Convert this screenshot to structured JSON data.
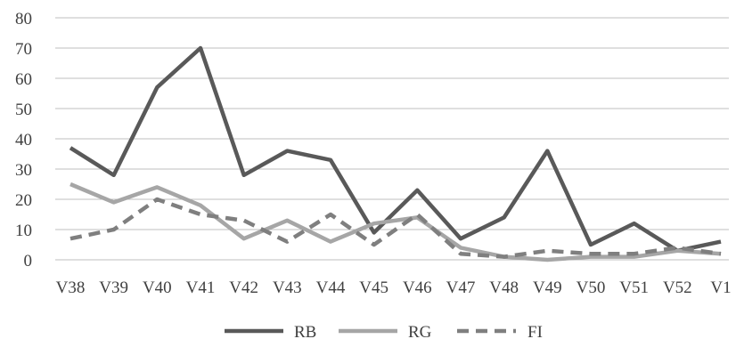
{
  "chart_data": {
    "type": "line",
    "title": "",
    "xlabel": "",
    "ylabel": "",
    "ylim": [
      0,
      80
    ],
    "yticks": [
      0,
      10,
      20,
      30,
      40,
      50,
      60,
      70,
      80
    ],
    "grid": true,
    "legend_position": "bottom",
    "categories": [
      "V38",
      "V39",
      "V40",
      "V41",
      "V42",
      "V43",
      "V44",
      "V45",
      "V46",
      "V47",
      "V48",
      "V49",
      "V50",
      "V51",
      "V52",
      "V1"
    ],
    "series": [
      {
        "name": "RB",
        "color": "#595959",
        "dash": "solid",
        "values": [
          37,
          28,
          57,
          70,
          28,
          36,
          33,
          9,
          23,
          7,
          14,
          36,
          5,
          12,
          3,
          6
        ]
      },
      {
        "name": "RG",
        "color": "#a6a6a6",
        "dash": "solid",
        "values": [
          25,
          19,
          24,
          18,
          7,
          13,
          6,
          12,
          14,
          4,
          1,
          0,
          1,
          1,
          3,
          2
        ]
      },
      {
        "name": "FI",
        "color": "#7f7f7f",
        "dash": "dashed",
        "values": [
          7,
          10,
          20,
          15,
          13,
          6,
          15,
          5,
          15,
          2,
          1,
          3,
          2,
          2,
          4,
          2
        ]
      }
    ]
  }
}
